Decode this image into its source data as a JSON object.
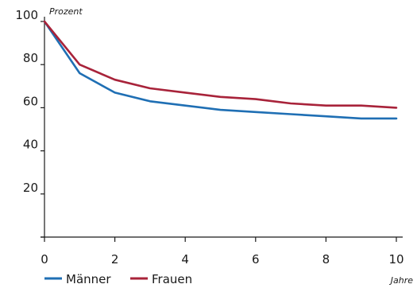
{
  "chart_data": {
    "type": "line",
    "ylabel": "Prozent",
    "xlabel": "Jahre",
    "xlim": [
      0,
      10
    ],
    "ylim": [
      0,
      100
    ],
    "x_ticks": [
      0,
      2,
      4,
      6,
      8,
      10
    ],
    "y_ticks": [
      20,
      40,
      60,
      80,
      100
    ],
    "x": [
      0,
      1,
      2,
      3,
      4,
      5,
      6,
      7,
      8,
      9,
      10
    ],
    "grid": false,
    "legend": "bottom-left",
    "series": [
      {
        "name": "Männer",
        "color": "#1f6fb4",
        "values": [
          100,
          76,
          67,
          63,
          61,
          59,
          58,
          57,
          56,
          55,
          55
        ]
      },
      {
        "name": "Frauen",
        "color": "#a8233a",
        "values": [
          100,
          80,
          73,
          69,
          67,
          65,
          64,
          62,
          61,
          61,
          60
        ]
      }
    ]
  }
}
